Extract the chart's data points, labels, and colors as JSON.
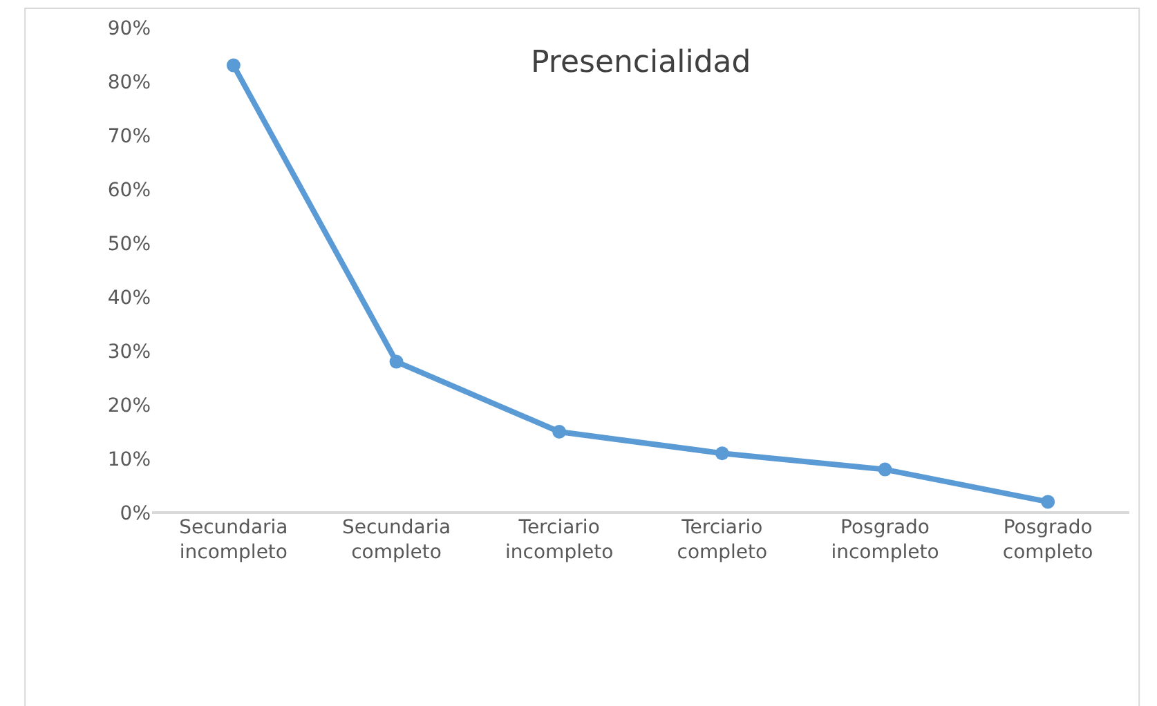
{
  "chart_data": {
    "type": "line",
    "title": "Presencialidad",
    "categories": [
      "Secundaria incompleto",
      "Secundaria completo",
      "Terciario incompleto",
      "Terciario completo",
      "Posgrado incompleto",
      "Posgrado completo"
    ],
    "series": [
      {
        "color": "#5b9bd5",
        "values": [
          83,
          28,
          15,
          11,
          8,
          2
        ]
      }
    ],
    "ylim": [
      0,
      90
    ],
    "yticks": [
      {
        "value": 0,
        "label": "0%"
      },
      {
        "value": 10,
        "label": "10%"
      },
      {
        "value": 20,
        "label": "20%"
      },
      {
        "value": 30,
        "label": "30%"
      },
      {
        "value": 40,
        "label": "40%"
      },
      {
        "value": 50,
        "label": "50%"
      },
      {
        "value": 60,
        "label": "60%"
      },
      {
        "value": 70,
        "label": "70%"
      },
      {
        "value": 80,
        "label": "80%"
      },
      {
        "value": 90,
        "label": "90%"
      }
    ],
    "grid": false,
    "marker": "circle",
    "line_style": "solid"
  }
}
